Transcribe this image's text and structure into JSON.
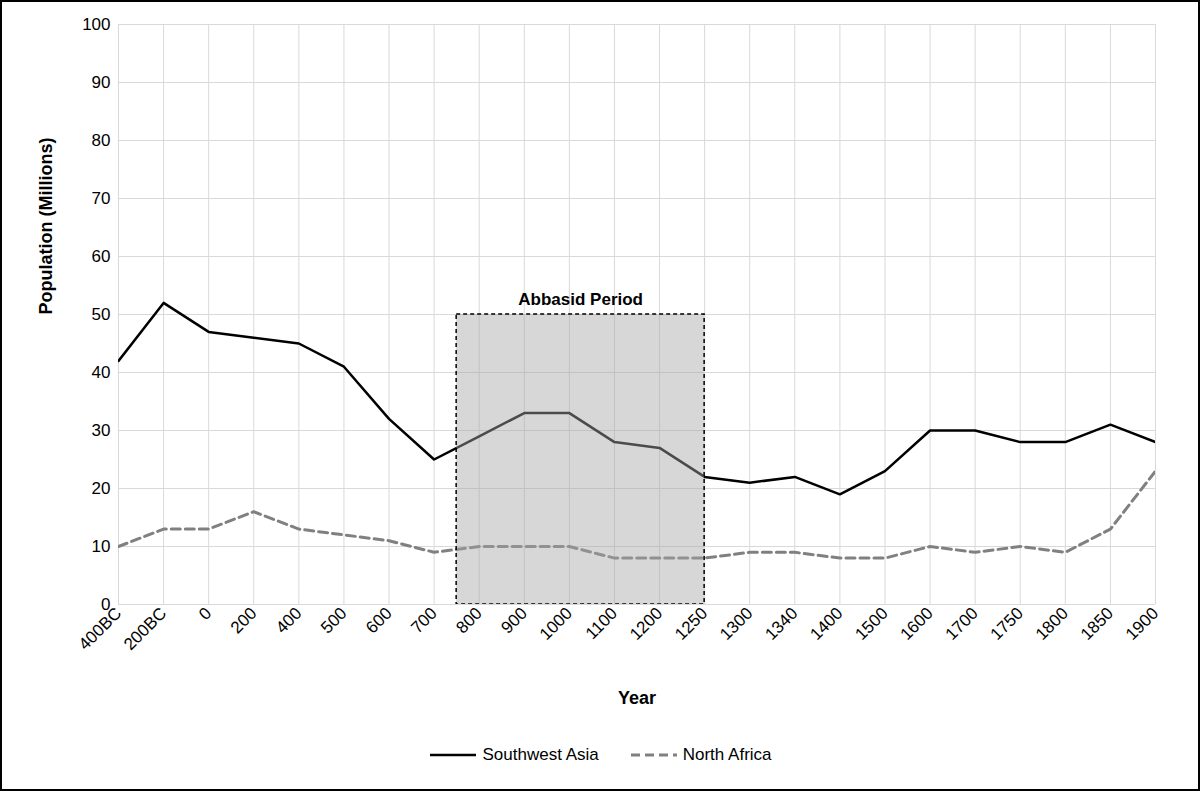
{
  "chart_data": {
    "type": "line",
    "x_label": "Year",
    "y_label": "Population (Millions)",
    "categories": [
      "400BC",
      "200BC",
      "0",
      "200",
      "400",
      "500",
      "600",
      "700",
      "800",
      "900",
      "1000",
      "1100",
      "1200",
      "1250",
      "1300",
      "1340",
      "1400",
      "1500",
      "1600",
      "1700",
      "1750",
      "1800",
      "1850",
      "1900"
    ],
    "series": [
      {
        "name": "Southwest Asia",
        "color": "#000000",
        "line_style": "solid",
        "values": [
          42,
          52,
          47,
          46,
          45,
          41,
          32,
          25,
          29,
          33,
          33,
          28,
          27,
          22,
          21,
          22,
          19,
          23,
          30,
          30,
          28,
          28,
          31,
          28
        ]
      },
      {
        "name": "North Africa",
        "color": "#808080",
        "line_style": "dashed",
        "values": [
          10,
          13,
          13,
          16,
          13,
          12,
          11,
          9,
          10,
          10,
          10,
          8,
          8,
          8,
          9,
          9,
          8,
          8,
          10,
          9,
          10,
          9,
          13,
          23
        ]
      }
    ],
    "regions": [
      {
        "label": "Abbasid Period",
        "x_from": 750,
        "x_to": 1250,
        "y_from": 0,
        "y_to": 50
      }
    ],
    "ylim": [
      0,
      100
    ],
    "yticks": [
      0,
      10,
      20,
      30,
      40,
      50,
      60,
      70,
      80,
      90,
      100
    ],
    "grid": true,
    "legend": "bottom"
  }
}
